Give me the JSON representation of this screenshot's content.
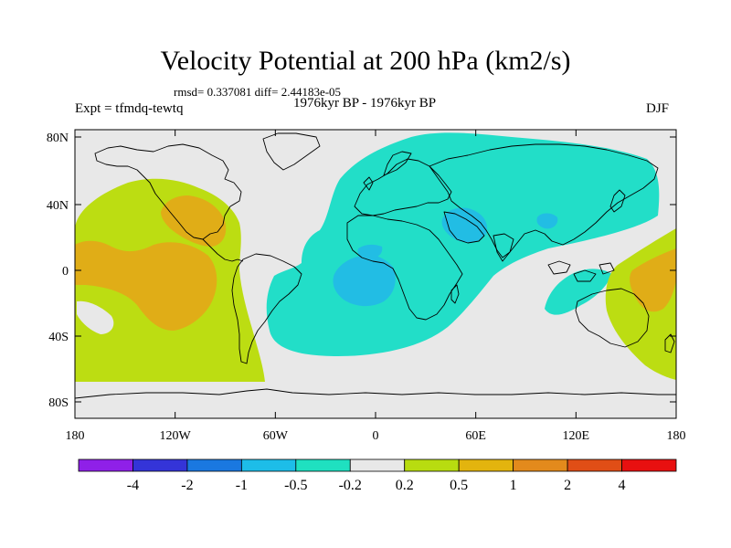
{
  "figure": {
    "title": "Velocity Potential at 200 hPa (km2/s)",
    "stats": "rmsd= 0.337081  diff= 2.44183e-05",
    "experiment": "Expt = tfmdq-tewtq",
    "period": "1976kyr BP - 1976kyr BP",
    "season": "DJF"
  },
  "axes": {
    "y_ticks": [
      "80N",
      "40N",
      "0",
      "40S",
      "80S"
    ],
    "x_ticks": [
      "180",
      "120W",
      "60W",
      "0",
      "60E",
      "120E",
      "180"
    ]
  },
  "colorbar": {
    "labels": [
      "-4",
      "-2",
      "-1",
      "-0.5",
      "-0.2",
      "0.2",
      "0.5",
      "1",
      "2",
      "4"
    ],
    "colors": [
      "#8f20e8",
      "#3434d8",
      "#1a78e0",
      "#1dbde8",
      "#1fe0c0",
      "#e8e8e8",
      "#b8dc10",
      "#e3b40e",
      "#e38a1c",
      "#e04e16",
      "#e81010"
    ]
  },
  "palette": {
    "ocean_background": "#e8e8e8",
    "negative_weak": "#22dec8",
    "negative_moderate": "#22bde4",
    "positive_weak": "#bcdd12",
    "positive_moderate": "#e0ad17",
    "coastline": "#000000"
  }
}
